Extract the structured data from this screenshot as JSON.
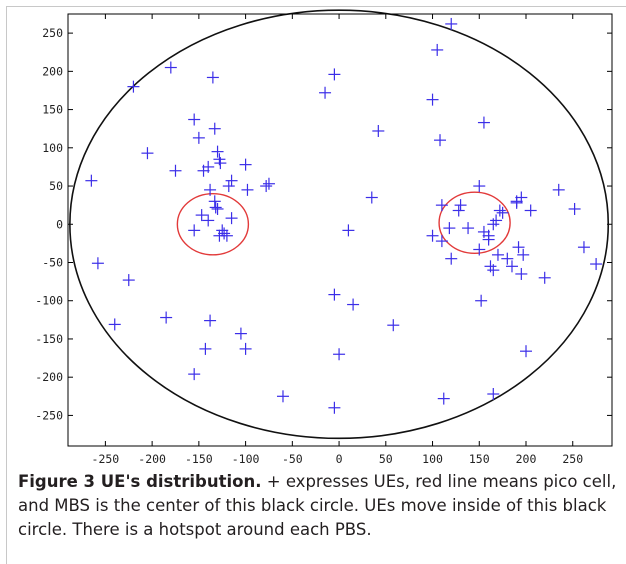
{
  "figure": {
    "caption_lead": "Figure 3 UE's distribution.",
    "caption_text": "+ expresses UEs, red line means pico cell, and MBS is the center of this black circle. UEs move inside of this black circle. There is a hotspot around each PBS."
  },
  "chart_data": {
    "type": "scatter",
    "title": "",
    "xlabel": "",
    "ylabel": "",
    "xlim": [
      -290,
      292
    ],
    "ylim": [
      -290,
      275
    ],
    "xticks": [
      -250,
      -200,
      -150,
      -100,
      -50,
      0,
      50,
      100,
      150,
      200,
      250
    ],
    "yticks": [
      250,
      200,
      150,
      100,
      50,
      0,
      -50,
      -100,
      -150,
      -200,
      -250
    ],
    "grid": false,
    "legend": "none",
    "colors": {
      "ue_marker": "#3b2ee8",
      "pico_cell": "#e23a3a",
      "macro_cell": "#111111"
    },
    "macro_cell": {
      "center": [
        0,
        0
      ],
      "radius_x": 288,
      "radius_y": 280
    },
    "pico_cells": [
      {
        "center": [
          -135,
          0
        ],
        "radius_x": 38,
        "radius_y": 40
      },
      {
        "center": [
          145,
          2
        ],
        "radius_x": 38,
        "radius_y": 40
      }
    ],
    "series": [
      {
        "marker": "+",
        "x": [
          -265,
          -220,
          -180,
          -205,
          -175,
          -155,
          -150,
          -135,
          -133,
          -130,
          -128,
          -127,
          -145,
          -140,
          -118,
          -115,
          -100,
          -98,
          -78,
          -75,
          -140,
          -147,
          -133,
          -125,
          -128,
          -130,
          -123,
          -115,
          -138,
          -132,
          -155,
          -120,
          -258,
          -225,
          -240,
          -185,
          -138,
          -143,
          -105,
          -100,
          -155,
          -60,
          -15,
          -5,
          35,
          42,
          10,
          -5,
          15,
          0,
          -5,
          58,
          120,
          105,
          100,
          108,
          155,
          110,
          118,
          128,
          150,
          172,
          195,
          190,
          205,
          235,
          252,
          262,
          275,
          100,
          110,
          120,
          130,
          138,
          150,
          155,
          160,
          162,
          165,
          168,
          170,
          175,
          180,
          185,
          190,
          192,
          195,
          197,
          160,
          165,
          200,
          220,
          152,
          112,
          165
        ],
        "y": [
          57,
          180,
          205,
          93,
          70,
          137,
          113,
          192,
          125,
          95,
          85,
          80,
          70,
          75,
          50,
          57,
          78,
          45,
          50,
          53,
          5,
          12,
          30,
          -8,
          -15,
          20,
          -12,
          8,
          45,
          22,
          -8,
          -15,
          -51,
          -73,
          -131,
          -122,
          -126,
          -163,
          -143,
          -163,
          -196,
          -225,
          172,
          196,
          35,
          122,
          -8,
          -92,
          -105,
          -170,
          -240,
          -132,
          262,
          228,
          163,
          110,
          133,
          25,
          -5,
          18,
          50,
          18,
          35,
          28,
          18,
          45,
          20,
          -30,
          -52,
          -15,
          -22,
          -45,
          25,
          -5,
          -33,
          -10,
          -20,
          -55,
          -60,
          5,
          -40,
          15,
          -45,
          -55,
          30,
          -30,
          -65,
          -40,
          -15,
          0,
          -166,
          -70,
          -100,
          -228,
          -222
        ]
      }
    ]
  }
}
